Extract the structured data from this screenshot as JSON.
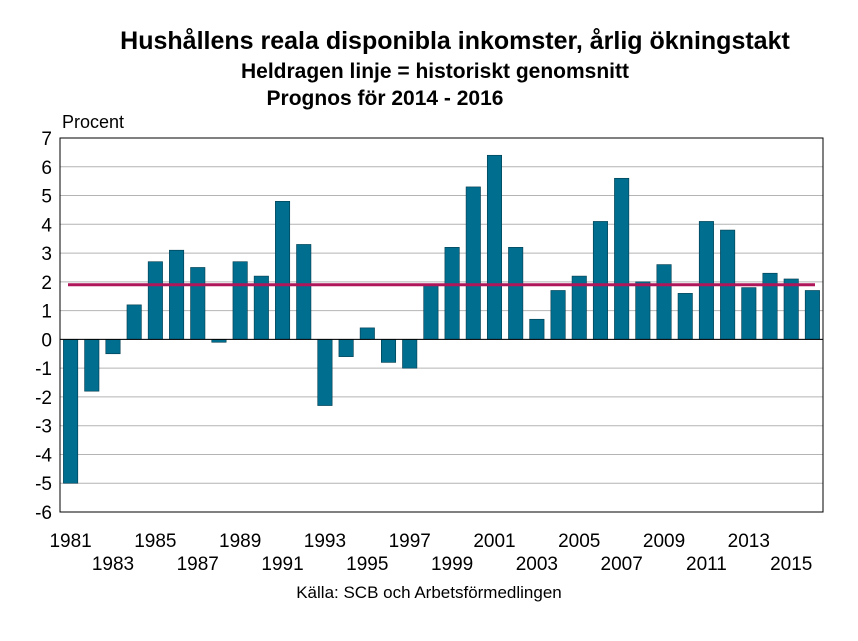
{
  "chart_data": {
    "type": "bar",
    "title": "Hushållens reala disponibla inkomster, årlig ökningstakt",
    "subtitle": "Heldragen linje = historiskt genomsnitt",
    "subtitle2": "Prognos för 2014 - 2016",
    "ylabel": "Procent",
    "source": "Källa: SCB och Arbetsförmedlingen",
    "ylim": [
      -6,
      7
    ],
    "yticks": [
      7,
      6,
      5,
      4,
      3,
      2,
      1,
      0,
      -1,
      -2,
      -3,
      -4,
      -5,
      -6
    ],
    "categories": [
      1981,
      1982,
      1983,
      1984,
      1985,
      1986,
      1987,
      1988,
      1989,
      1990,
      1991,
      1992,
      1993,
      1994,
      1995,
      1996,
      1997,
      1998,
      1999,
      2000,
      2001,
      2002,
      2003,
      2004,
      2005,
      2006,
      2007,
      2008,
      2009,
      2010,
      2011,
      2012,
      2013,
      2014,
      2015,
      2016
    ],
    "values": [
      -5.0,
      -1.8,
      -0.5,
      1.2,
      2.7,
      3.1,
      2.5,
      -0.1,
      2.7,
      2.2,
      4.8,
      3.3,
      -2.3,
      -0.6,
      0.4,
      -0.8,
      -1.0,
      1.9,
      3.2,
      5.3,
      6.4,
      3.2,
      0.7,
      1.7,
      2.2,
      4.1,
      5.6,
      2.0,
      2.6,
      1.6,
      4.1,
      3.8,
      1.8,
      2.3,
      2.1,
      1.7
    ],
    "xtick_labels_upper": [
      "1981",
      "1985",
      "1989",
      "1993",
      "1997",
      "2001",
      "2005",
      "2009",
      "2013"
    ],
    "xtick_labels_lower": [
      "1983",
      "1987",
      "1991",
      "1995",
      "1999",
      "2003",
      "2007",
      "2011",
      "2015"
    ],
    "average_line": 1.9,
    "bar_color": "#006e8f",
    "average_color": "#b0165a",
    "grid": true,
    "legend": "none"
  }
}
